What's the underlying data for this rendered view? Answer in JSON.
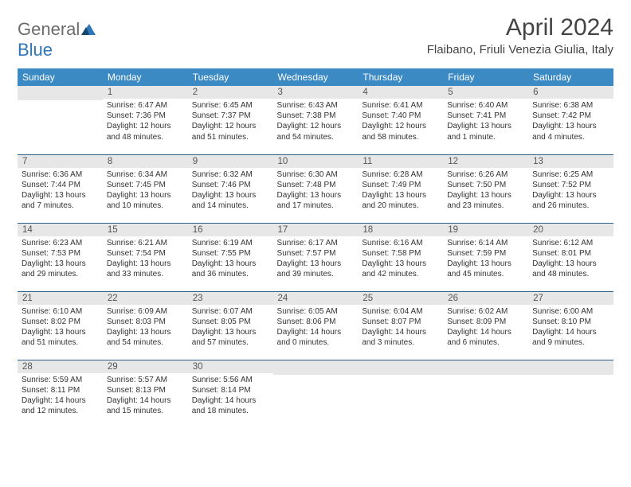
{
  "logo": {
    "part1": "General",
    "part2": "Blue"
  },
  "title": "April 2024",
  "location": "Flaibano, Friuli Venezia Giulia, Italy",
  "colors": {
    "header_bg": "#3b8ac4",
    "header_text": "#ffffff",
    "daynum_bg": "#e7e7e7",
    "rule": "#2b5e86",
    "logo_gray": "#6b6b6b",
    "logo_blue": "#2f77b8"
  },
  "weekdays": [
    "Sunday",
    "Monday",
    "Tuesday",
    "Wednesday",
    "Thursday",
    "Friday",
    "Saturday"
  ],
  "weeks": [
    [
      {
        "n": "",
        "sr": "",
        "ss": "",
        "dl1": "",
        "dl2": ""
      },
      {
        "n": "1",
        "sr": "Sunrise: 6:47 AM",
        "ss": "Sunset: 7:36 PM",
        "dl1": "Daylight: 12 hours",
        "dl2": "and 48 minutes."
      },
      {
        "n": "2",
        "sr": "Sunrise: 6:45 AM",
        "ss": "Sunset: 7:37 PM",
        "dl1": "Daylight: 12 hours",
        "dl2": "and 51 minutes."
      },
      {
        "n": "3",
        "sr": "Sunrise: 6:43 AM",
        "ss": "Sunset: 7:38 PM",
        "dl1": "Daylight: 12 hours",
        "dl2": "and 54 minutes."
      },
      {
        "n": "4",
        "sr": "Sunrise: 6:41 AM",
        "ss": "Sunset: 7:40 PM",
        "dl1": "Daylight: 12 hours",
        "dl2": "and 58 minutes."
      },
      {
        "n": "5",
        "sr": "Sunrise: 6:40 AM",
        "ss": "Sunset: 7:41 PM",
        "dl1": "Daylight: 13 hours",
        "dl2": "and 1 minute."
      },
      {
        "n": "6",
        "sr": "Sunrise: 6:38 AM",
        "ss": "Sunset: 7:42 PM",
        "dl1": "Daylight: 13 hours",
        "dl2": "and 4 minutes."
      }
    ],
    [
      {
        "n": "7",
        "sr": "Sunrise: 6:36 AM",
        "ss": "Sunset: 7:44 PM",
        "dl1": "Daylight: 13 hours",
        "dl2": "and 7 minutes."
      },
      {
        "n": "8",
        "sr": "Sunrise: 6:34 AM",
        "ss": "Sunset: 7:45 PM",
        "dl1": "Daylight: 13 hours",
        "dl2": "and 10 minutes."
      },
      {
        "n": "9",
        "sr": "Sunrise: 6:32 AM",
        "ss": "Sunset: 7:46 PM",
        "dl1": "Daylight: 13 hours",
        "dl2": "and 14 minutes."
      },
      {
        "n": "10",
        "sr": "Sunrise: 6:30 AM",
        "ss": "Sunset: 7:48 PM",
        "dl1": "Daylight: 13 hours",
        "dl2": "and 17 minutes."
      },
      {
        "n": "11",
        "sr": "Sunrise: 6:28 AM",
        "ss": "Sunset: 7:49 PM",
        "dl1": "Daylight: 13 hours",
        "dl2": "and 20 minutes."
      },
      {
        "n": "12",
        "sr": "Sunrise: 6:26 AM",
        "ss": "Sunset: 7:50 PM",
        "dl1": "Daylight: 13 hours",
        "dl2": "and 23 minutes."
      },
      {
        "n": "13",
        "sr": "Sunrise: 6:25 AM",
        "ss": "Sunset: 7:52 PM",
        "dl1": "Daylight: 13 hours",
        "dl2": "and 26 minutes."
      }
    ],
    [
      {
        "n": "14",
        "sr": "Sunrise: 6:23 AM",
        "ss": "Sunset: 7:53 PM",
        "dl1": "Daylight: 13 hours",
        "dl2": "and 29 minutes."
      },
      {
        "n": "15",
        "sr": "Sunrise: 6:21 AM",
        "ss": "Sunset: 7:54 PM",
        "dl1": "Daylight: 13 hours",
        "dl2": "and 33 minutes."
      },
      {
        "n": "16",
        "sr": "Sunrise: 6:19 AM",
        "ss": "Sunset: 7:55 PM",
        "dl1": "Daylight: 13 hours",
        "dl2": "and 36 minutes."
      },
      {
        "n": "17",
        "sr": "Sunrise: 6:17 AM",
        "ss": "Sunset: 7:57 PM",
        "dl1": "Daylight: 13 hours",
        "dl2": "and 39 minutes."
      },
      {
        "n": "18",
        "sr": "Sunrise: 6:16 AM",
        "ss": "Sunset: 7:58 PM",
        "dl1": "Daylight: 13 hours",
        "dl2": "and 42 minutes."
      },
      {
        "n": "19",
        "sr": "Sunrise: 6:14 AM",
        "ss": "Sunset: 7:59 PM",
        "dl1": "Daylight: 13 hours",
        "dl2": "and 45 minutes."
      },
      {
        "n": "20",
        "sr": "Sunrise: 6:12 AM",
        "ss": "Sunset: 8:01 PM",
        "dl1": "Daylight: 13 hours",
        "dl2": "and 48 minutes."
      }
    ],
    [
      {
        "n": "21",
        "sr": "Sunrise: 6:10 AM",
        "ss": "Sunset: 8:02 PM",
        "dl1": "Daylight: 13 hours",
        "dl2": "and 51 minutes."
      },
      {
        "n": "22",
        "sr": "Sunrise: 6:09 AM",
        "ss": "Sunset: 8:03 PM",
        "dl1": "Daylight: 13 hours",
        "dl2": "and 54 minutes."
      },
      {
        "n": "23",
        "sr": "Sunrise: 6:07 AM",
        "ss": "Sunset: 8:05 PM",
        "dl1": "Daylight: 13 hours",
        "dl2": "and 57 minutes."
      },
      {
        "n": "24",
        "sr": "Sunrise: 6:05 AM",
        "ss": "Sunset: 8:06 PM",
        "dl1": "Daylight: 14 hours",
        "dl2": "and 0 minutes."
      },
      {
        "n": "25",
        "sr": "Sunrise: 6:04 AM",
        "ss": "Sunset: 8:07 PM",
        "dl1": "Daylight: 14 hours",
        "dl2": "and 3 minutes."
      },
      {
        "n": "26",
        "sr": "Sunrise: 6:02 AM",
        "ss": "Sunset: 8:09 PM",
        "dl1": "Daylight: 14 hours",
        "dl2": "and 6 minutes."
      },
      {
        "n": "27",
        "sr": "Sunrise: 6:00 AM",
        "ss": "Sunset: 8:10 PM",
        "dl1": "Daylight: 14 hours",
        "dl2": "and 9 minutes."
      }
    ],
    [
      {
        "n": "28",
        "sr": "Sunrise: 5:59 AM",
        "ss": "Sunset: 8:11 PM",
        "dl1": "Daylight: 14 hours",
        "dl2": "and 12 minutes."
      },
      {
        "n": "29",
        "sr": "Sunrise: 5:57 AM",
        "ss": "Sunset: 8:13 PM",
        "dl1": "Daylight: 14 hours",
        "dl2": "and 15 minutes."
      },
      {
        "n": "30",
        "sr": "Sunrise: 5:56 AM",
        "ss": "Sunset: 8:14 PM",
        "dl1": "Daylight: 14 hours",
        "dl2": "and 18 minutes."
      },
      {
        "n": "",
        "sr": "",
        "ss": "",
        "dl1": "",
        "dl2": ""
      },
      {
        "n": "",
        "sr": "",
        "ss": "",
        "dl1": "",
        "dl2": ""
      },
      {
        "n": "",
        "sr": "",
        "ss": "",
        "dl1": "",
        "dl2": ""
      },
      {
        "n": "",
        "sr": "",
        "ss": "",
        "dl1": "",
        "dl2": ""
      }
    ]
  ]
}
